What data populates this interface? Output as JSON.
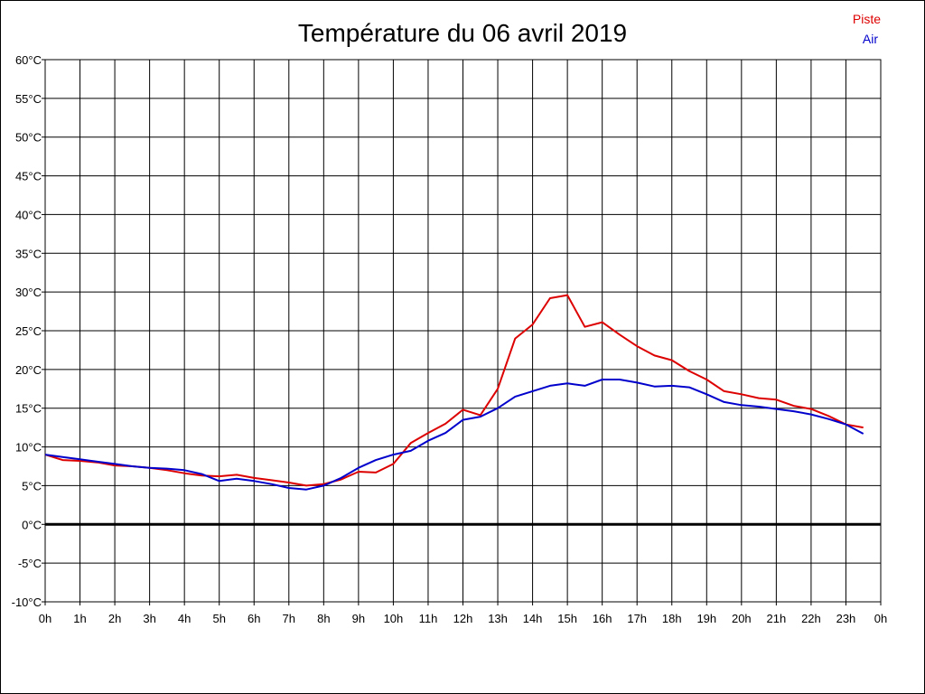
{
  "chart_data": {
    "type": "line",
    "title": "Température du 06 avril 2019",
    "xlabel": "",
    "ylabel": "",
    "ylim": [
      -10,
      60
    ],
    "y_ticks": [
      -10,
      -5,
      0,
      5,
      10,
      15,
      20,
      25,
      30,
      35,
      40,
      45,
      50,
      55,
      60
    ],
    "y_tick_labels": [
      "-10°C",
      "-5°C",
      "0°C",
      "5°C",
      "10°C",
      "15°C",
      "20°C",
      "25°C",
      "30°C",
      "35°C",
      "40°C",
      "45°C",
      "50°C",
      "55°C",
      "60°C"
    ],
    "x_ticks": [
      0,
      1,
      2,
      3,
      4,
      5,
      6,
      7,
      8,
      9,
      10,
      11,
      12,
      13,
      14,
      15,
      16,
      17,
      18,
      19,
      20,
      21,
      22,
      23,
      24
    ],
    "x_tick_labels": [
      "0h",
      "1h",
      "2h",
      "3h",
      "4h",
      "5h",
      "6h",
      "7h",
      "8h",
      "9h",
      "10h",
      "11h",
      "12h",
      "13h",
      "14h",
      "15h",
      "16h",
      "17h",
      "18h",
      "19h",
      "20h",
      "21h",
      "22h",
      "23h",
      "0h"
    ],
    "xlim": [
      0,
      24
    ],
    "grid": true,
    "zero_line": true,
    "legend_position": "top-right",
    "series": [
      {
        "name": "Piste",
        "color": "#dd0000",
        "x": [
          0,
          0.5,
          1,
          1.5,
          2,
          2.5,
          3,
          3.5,
          4,
          4.5,
          5,
          5.5,
          6,
          6.5,
          7,
          7.5,
          8,
          8.5,
          9,
          9.5,
          10,
          10.5,
          11,
          11.5,
          12,
          12.5,
          13,
          13.5,
          14,
          14.5,
          15,
          15.5,
          16,
          16.5,
          17,
          17.5,
          18,
          18.5,
          19,
          19.5,
          20,
          20.5,
          21,
          21.5,
          22,
          22.5,
          23,
          23.5
        ],
        "y": [
          9.0,
          8.3,
          8.2,
          8.0,
          7.6,
          7.5,
          7.3,
          7.0,
          6.6,
          6.3,
          6.2,
          6.4,
          6.0,
          5.7,
          5.4,
          5.0,
          5.2,
          5.8,
          6.8,
          6.7,
          7.8,
          10.5,
          11.8,
          13.0,
          14.8,
          14.1,
          17.5,
          24.0,
          25.8,
          29.2,
          29.6,
          25.5,
          26.1,
          24.5,
          23.0,
          21.8,
          21.2,
          19.8,
          18.7,
          17.2,
          16.8,
          16.3,
          16.1,
          15.3,
          14.9,
          14.0,
          12.9,
          12.5
        ]
      },
      {
        "name": "Air",
        "color": "#0000cc",
        "x": [
          0,
          0.5,
          1,
          1.5,
          2,
          2.5,
          3,
          3.5,
          4,
          4.5,
          5,
          5.5,
          6,
          6.5,
          7,
          7.5,
          8,
          8.5,
          9,
          9.5,
          10,
          10.5,
          11,
          11.5,
          12,
          12.5,
          13,
          13.5,
          14,
          14.5,
          15,
          15.5,
          16,
          16.5,
          17,
          17.5,
          18,
          18.5,
          19,
          19.5,
          20,
          20.5,
          21,
          21.5,
          22,
          22.5,
          23,
          23.5
        ],
        "y": [
          9.0,
          8.7,
          8.4,
          8.1,
          7.8,
          7.5,
          7.3,
          7.2,
          7.0,
          6.5,
          5.6,
          5.9,
          5.6,
          5.2,
          4.7,
          4.5,
          5.0,
          6.0,
          7.3,
          8.3,
          9.0,
          9.5,
          10.8,
          11.8,
          13.5,
          13.9,
          15.0,
          16.5,
          17.2,
          17.9,
          18.2,
          17.9,
          18.7,
          18.7,
          18.3,
          17.8,
          17.9,
          17.7,
          16.8,
          15.8,
          15.4,
          15.2,
          14.9,
          14.6,
          14.2,
          13.6,
          12.9,
          11.7
        ]
      }
    ]
  }
}
